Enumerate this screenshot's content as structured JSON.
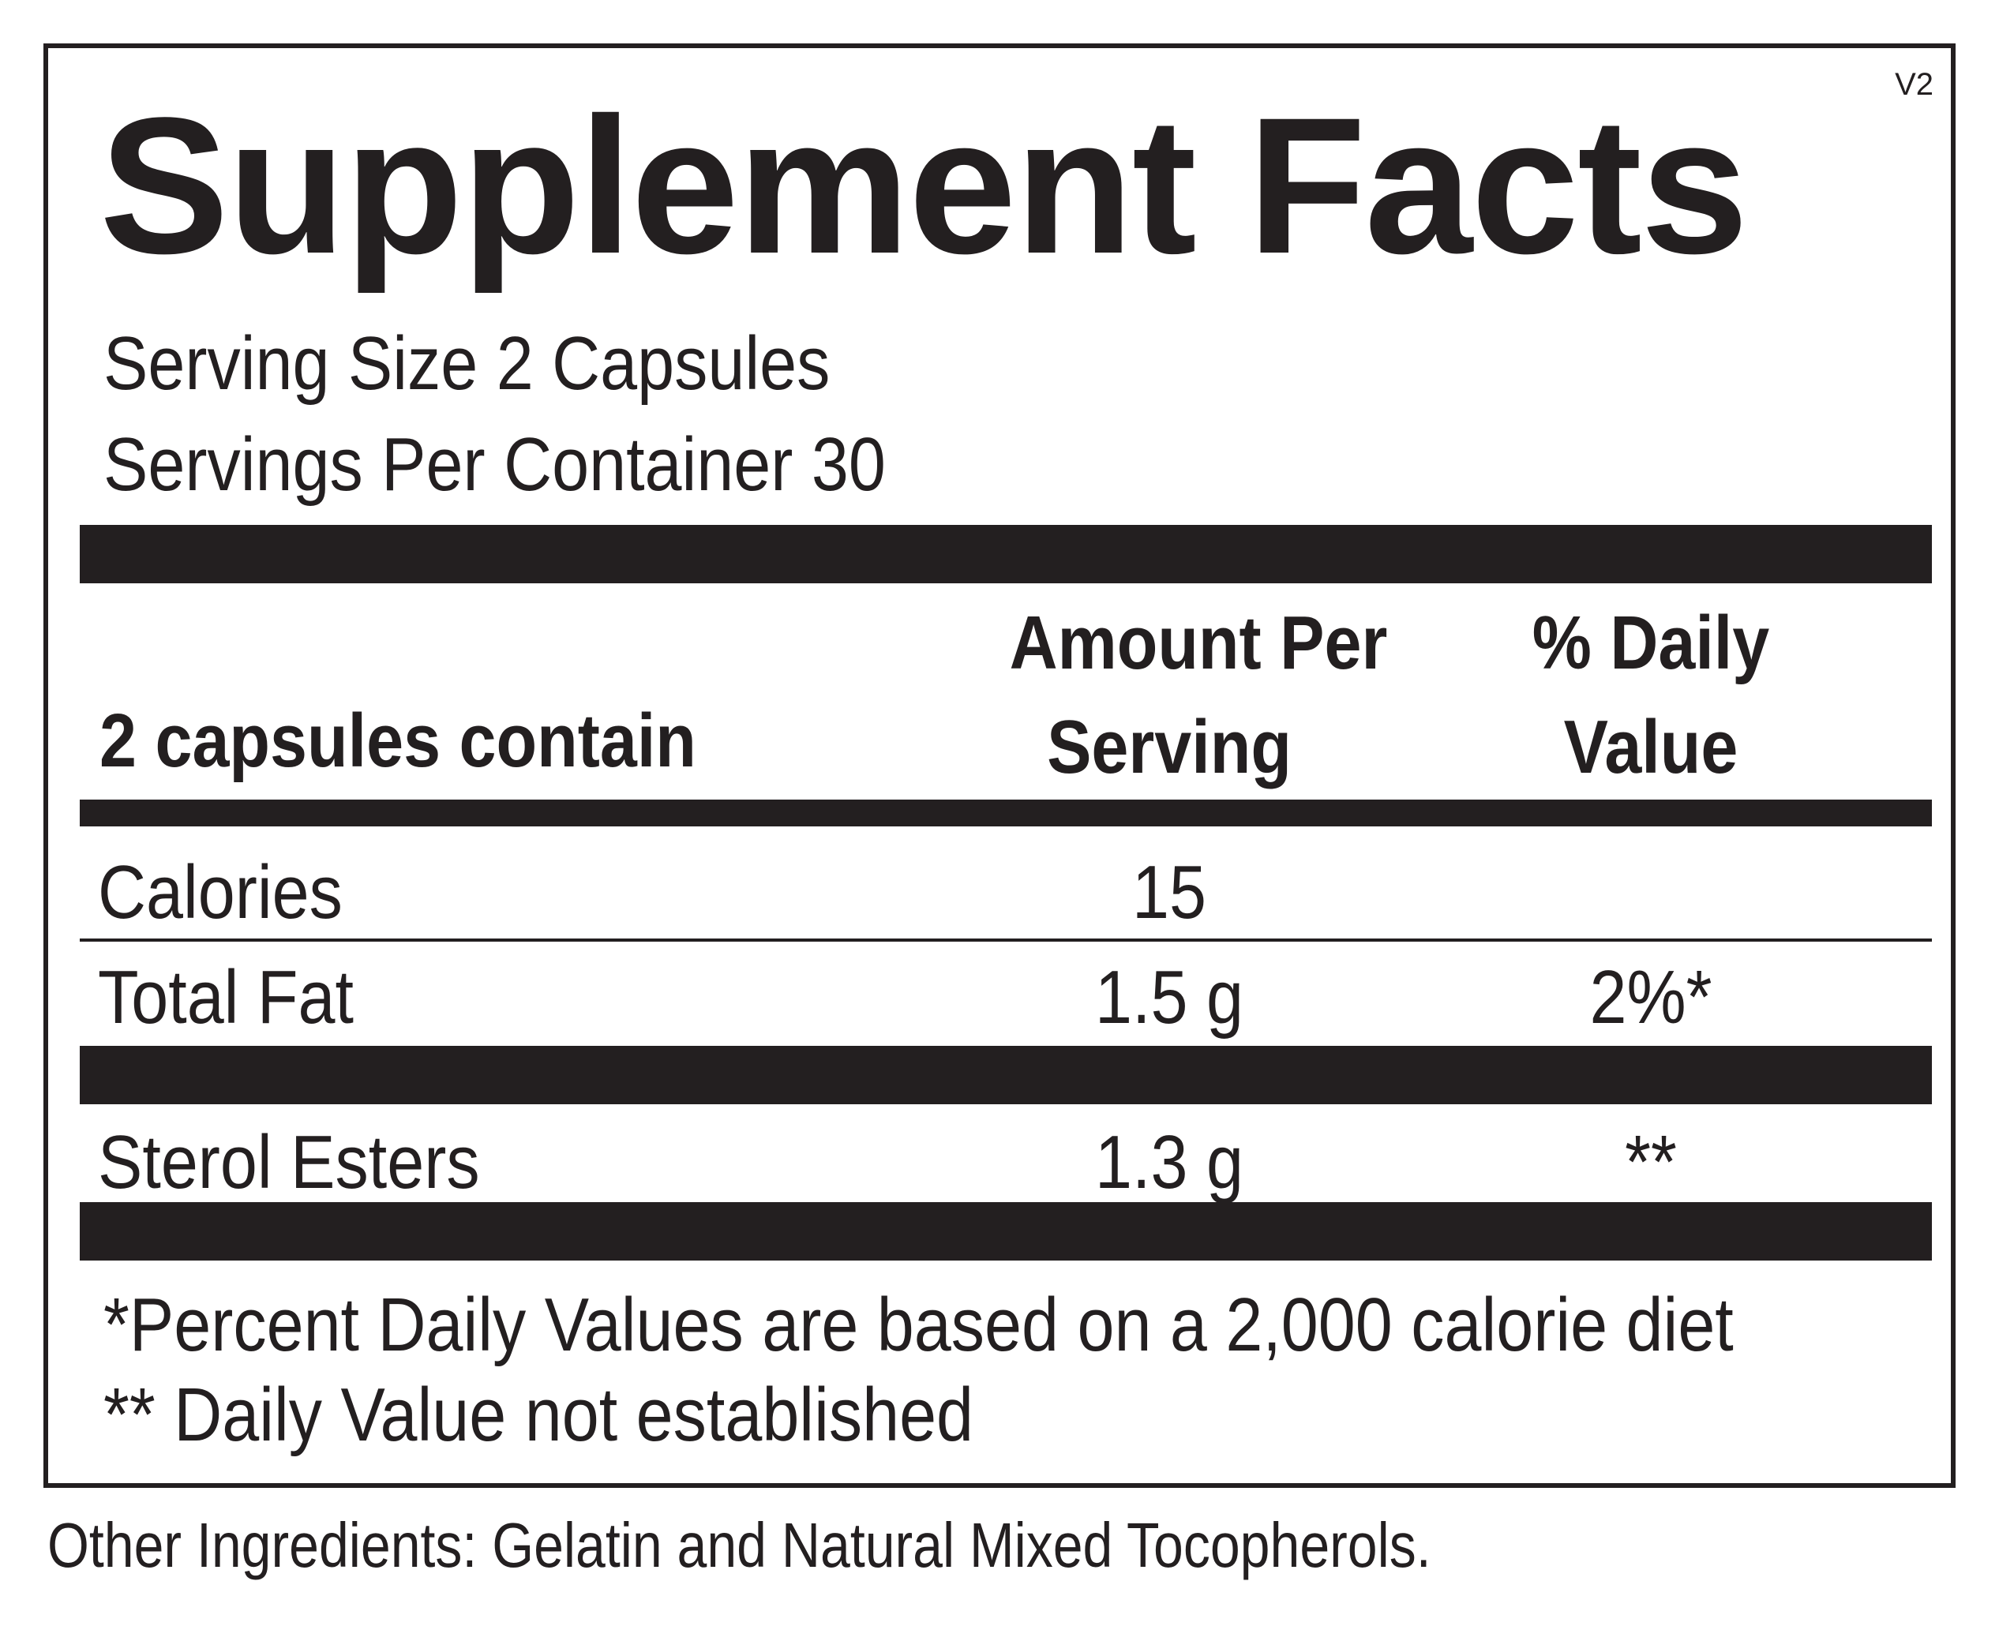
{
  "label": {
    "title": "Supplement Facts",
    "version": "V2",
    "serving_size": "Serving Size 2 Capsules",
    "servings_per_container": "Servings Per Container 30",
    "header": {
      "label_col": "2 capsules contain",
      "amount_line1": "Amount Per",
      "amount_line2": "Serving",
      "dv_line1": "% Daily",
      "dv_line2": "Value"
    },
    "rows": [
      {
        "name": "Calories",
        "amount": "15",
        "dv": ""
      },
      {
        "name": "Total Fat",
        "amount": "1.5 g",
        "dv": "2%*"
      },
      {
        "name": "Sterol Esters",
        "amount": "1.3 g",
        "dv": "**"
      }
    ],
    "footnotes": [
      "*Percent Daily Values are based on a 2,000 calorie diet",
      "** Daily Value not established"
    ]
  },
  "other_ingredients": "Other Ingredients: Gelatin and Natural Mixed Tocopherols.",
  "colors": {
    "ink": "#231f20",
    "background": "#ffffff"
  }
}
